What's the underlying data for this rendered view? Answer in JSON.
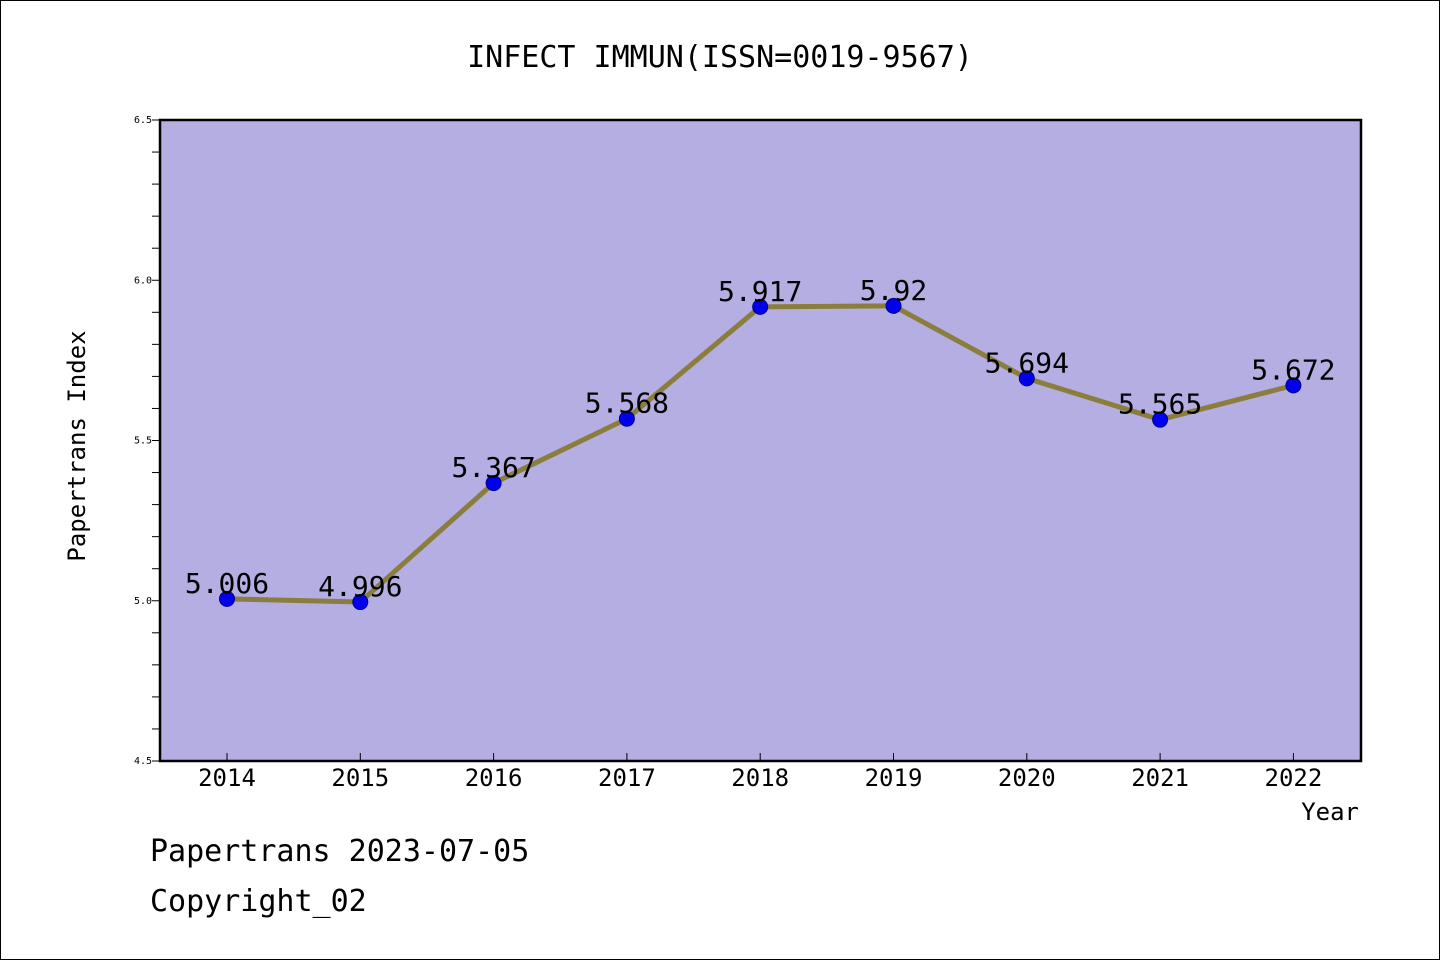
{
  "footer": {
    "line1": "Papertrans 2023-07-05",
    "line2": "Copyright_02"
  },
  "chart_data": {
    "type": "line",
    "title": "INFECT IMMUN(ISSN=0019-9567)",
    "xlabel": "Year",
    "ylabel": "Papertrans Index",
    "x": [
      "2014",
      "2015",
      "2016",
      "2017",
      "2018",
      "2019",
      "2020",
      "2021",
      "2022"
    ],
    "series": [
      {
        "values": [
          5.006,
          4.996,
          5.367,
          5.568,
          5.917,
          5.92,
          5.694,
          5.565,
          5.672
        ],
        "labels": [
          "5.006",
          "4.996",
          "5.367",
          "5.568",
          "5.917",
          "5.92",
          "5.694",
          "5.565",
          "5.672"
        ]
      }
    ],
    "ylim": [
      4.5,
      6.5
    ],
    "yticks": [
      "4.5",
      "5.0",
      "5.5",
      "6.0",
      "6.5"
    ],
    "grid": false,
    "colors": {
      "plot_background": "#b4aee2",
      "line": "#8b7d3c",
      "marker": "#0000ee",
      "marker_edge": "#000080"
    }
  }
}
